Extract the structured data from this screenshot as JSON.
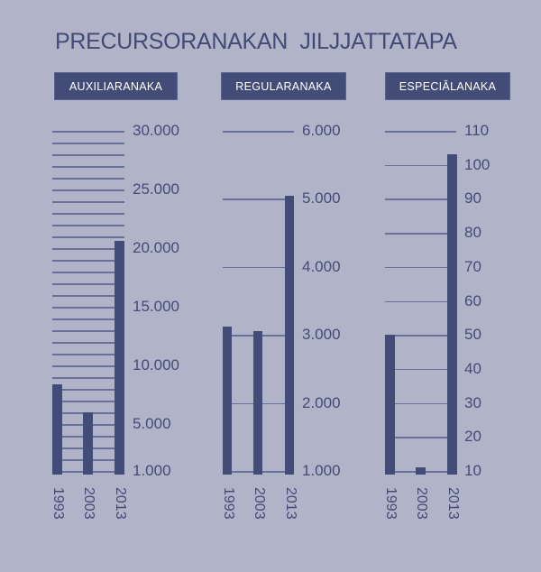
{
  "title": "PRECURSORANAKAN  JILJJATTATAPA",
  "colors": {
    "background": "#b1b3c9",
    "bar": "#424c76",
    "gridline": "#687199",
    "text": "#434c76",
    "header_bg": "#424c76",
    "header_text": "#ffffff"
  },
  "charts": [
    {
      "label": "AUXILIARANAKA",
      "ticks": [
        "30.000",
        "25.000",
        "20.000",
        "15.000",
        "10.000",
        "5.000",
        "1.000"
      ],
      "years": [
        "1993",
        "2003",
        "2013"
      ]
    },
    {
      "label": "REGULARANAKA",
      "ticks": [
        "6.000",
        "5.000",
        "4.000",
        "3.000",
        "2.000",
        "1.000"
      ],
      "years": [
        "1993",
        "2003",
        "2013"
      ]
    },
    {
      "label": "ESPECIĂLANAKA",
      "ticks": [
        "110",
        "100",
        "90",
        "80",
        "70",
        "60",
        "50",
        "40",
        "30",
        "20",
        "10"
      ],
      "years": [
        "1993",
        "2003",
        "2013"
      ]
    }
  ],
  "chart_data": [
    {
      "type": "bar",
      "title": "AUXILIARANAKA",
      "categories": [
        "1993",
        "2003",
        "2013"
      ],
      "values": [
        8400,
        6000,
        20600
      ],
      "xlabel": "",
      "ylabel": "",
      "ylim": [
        1000,
        30000
      ],
      "yticks": [
        1000,
        5000,
        10000,
        15000,
        20000,
        25000,
        30000
      ],
      "grid": true,
      "grid_step": 1000
    },
    {
      "type": "bar",
      "title": "REGULARANAKA",
      "categories": [
        "1993",
        "2003",
        "2013"
      ],
      "values": [
        3120,
        3050,
        5050
      ],
      "xlabel": "",
      "ylabel": "",
      "ylim": [
        1000,
        6000
      ],
      "yticks": [
        1000,
        2000,
        3000,
        4000,
        5000,
        6000
      ],
      "grid": true,
      "grid_step": 1000
    },
    {
      "type": "bar",
      "title": "ESPECIĂLANAKA",
      "categories": [
        "1993",
        "2003",
        "2013"
      ],
      "values": [
        50,
        11,
        103
      ],
      "xlabel": "",
      "ylabel": "",
      "ylim": [
        10,
        110
      ],
      "yticks": [
        10,
        20,
        30,
        40,
        50,
        60,
        70,
        80,
        90,
        100,
        110
      ],
      "grid": true,
      "grid_step": 10
    }
  ]
}
